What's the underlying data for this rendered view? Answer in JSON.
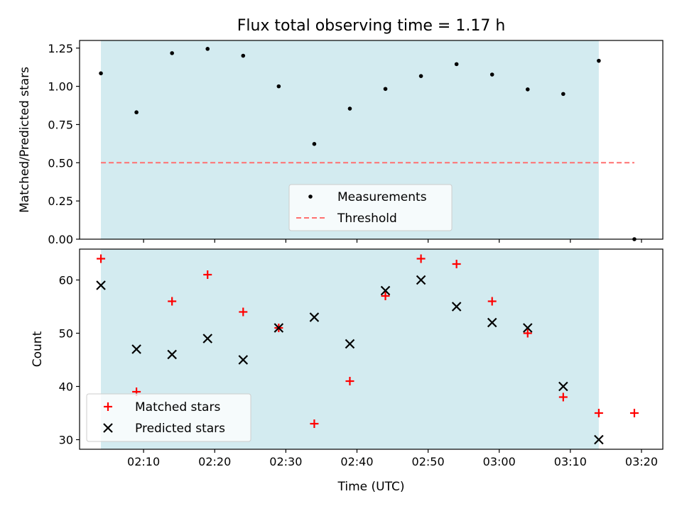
{
  "chart_data": [
    {
      "type": "scatter",
      "title": "Flux total observing time = 1.17 h",
      "xlabel": "",
      "ylabel": "Matched/Predicted stars",
      "ylim": [
        0.0,
        1.3
      ],
      "yticks": [
        0.0,
        0.25,
        0.5,
        0.75,
        1.0,
        1.25
      ],
      "ytick_labels": [
        "0.00",
        "0.25",
        "0.50",
        "0.75",
        "1.00",
        "1.25"
      ],
      "x_is_time": true,
      "xlim": [
        "02:01",
        "03:23"
      ],
      "shaded_interval": [
        "02:04",
        "03:14"
      ],
      "shade_color": "#d3ebf0",
      "series": [
        {
          "name": "Measurements",
          "marker": "dot",
          "color": "#000000",
          "x": [
            "02:04",
            "02:09",
            "02:14",
            "02:19",
            "02:24",
            "02:29",
            "02:34",
            "02:39",
            "02:44",
            "02:49",
            "02:54",
            "02:59",
            "03:04",
            "03:09",
            "03:14",
            "03:19"
          ],
          "y": [
            1.085,
            0.83,
            1.217,
            1.245,
            1.2,
            1.0,
            0.623,
            0.854,
            0.983,
            1.067,
            1.145,
            1.077,
            0.98,
            0.95,
            1.167,
            0.0
          ]
        },
        {
          "name": "Threshold",
          "type": "line",
          "style": "dashed",
          "color": "#ff7070",
          "x": [
            "02:04",
            "03:19"
          ],
          "y": [
            0.5,
            0.5
          ]
        }
      ],
      "legend": "lower-center"
    },
    {
      "type": "scatter",
      "xlabel": "Time (UTC)",
      "ylabel": "Count",
      "ylim": [
        28.2,
        65.8
      ],
      "yticks": [
        30,
        40,
        50,
        60
      ],
      "ytick_labels": [
        "30",
        "40",
        "50",
        "60"
      ],
      "x_is_time": true,
      "xlim": [
        "02:01",
        "03:23"
      ],
      "xticks": [
        "02:10",
        "02:20",
        "02:30",
        "02:40",
        "02:50",
        "03:00",
        "03:10",
        "03:20"
      ],
      "xtick_labels": [
        "02:10",
        "02:20",
        "02:30",
        "02:40",
        "02:50",
        "03:00",
        "03:10",
        "03:20"
      ],
      "shaded_interval": [
        "02:04",
        "03:14"
      ],
      "shade_color": "#d3ebf0",
      "series": [
        {
          "name": "Matched stars",
          "marker": "plus",
          "color": "#ff0000",
          "x": [
            "02:04",
            "02:09",
            "02:14",
            "02:19",
            "02:24",
            "02:29",
            "02:34",
            "02:39",
            "02:44",
            "02:49",
            "02:54",
            "02:59",
            "03:04",
            "03:09",
            "03:14",
            "03:19"
          ],
          "y": [
            64,
            39,
            56,
            61,
            54,
            51,
            33,
            41,
            57,
            64,
            63,
            56,
            50,
            38,
            35,
            35
          ]
        },
        {
          "name": "Predicted stars",
          "marker": "x",
          "color": "#000000",
          "x": [
            "02:04",
            "02:09",
            "02:14",
            "02:19",
            "02:24",
            "02:29",
            "02:34",
            "02:39",
            "02:44",
            "02:49",
            "02:54",
            "02:59",
            "03:04",
            "03:09",
            "03:14"
          ],
          "y": [
            59,
            47,
            46,
            49,
            45,
            51,
            53,
            48,
            58,
            60,
            55,
            52,
            51,
            40,
            30
          ]
        }
      ],
      "legend": "lower-left"
    }
  ]
}
